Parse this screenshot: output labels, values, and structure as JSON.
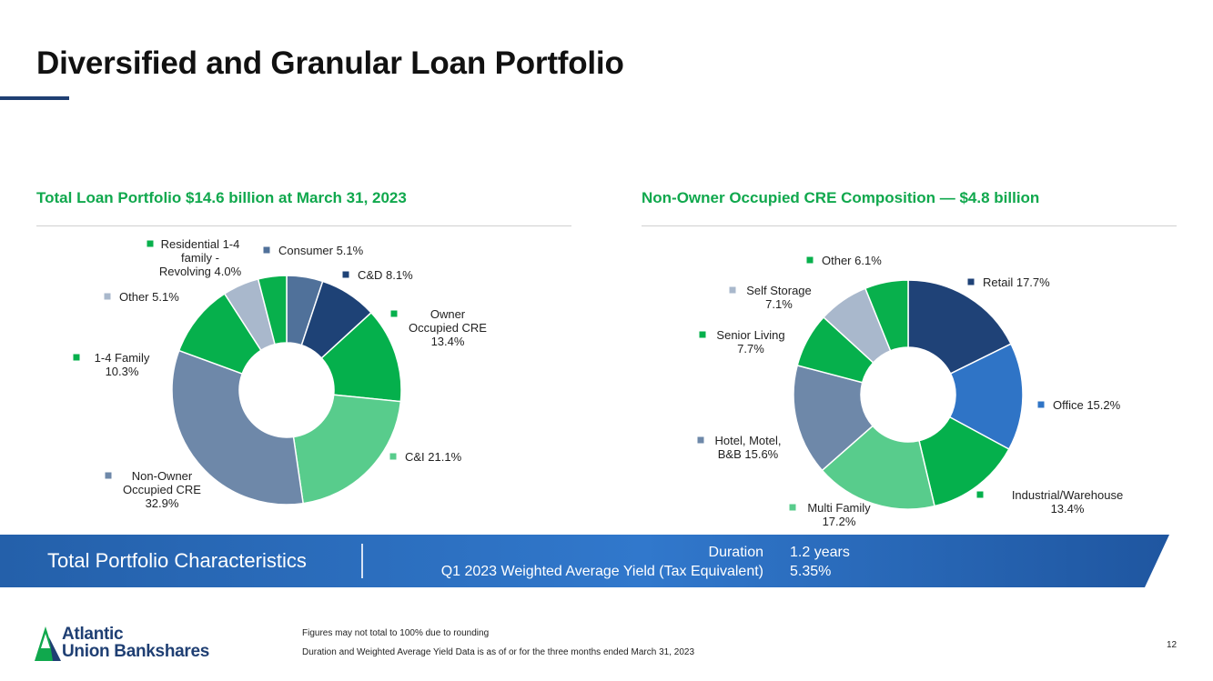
{
  "title": "Diversified and Granular Loan Portfolio",
  "colors": {
    "title_rule": "#1f3f73",
    "green_heading": "#10a84d",
    "banner": "#2e6fbf"
  },
  "chart_data": [
    {
      "type": "pie",
      "title": "Total Loan Portfolio $14.6 billion at March 31, 2023",
      "donut": true,
      "slices": [
        {
          "name": "Consumer",
          "value": 5.1,
          "label_lines": [
            "Consumer 5.1%"
          ],
          "color": "#50719a"
        },
        {
          "name": "C&D",
          "value": 8.1,
          "label_lines": [
            "C&D 8.1%"
          ],
          "color": "#1e4276"
        },
        {
          "name": "Owner Occupied CRE",
          "value": 13.4,
          "label_lines": [
            "Owner",
            "Occupied CRE",
            "13.4%"
          ],
          "color": "#05b04c"
        },
        {
          "name": "C&I",
          "value": 21.1,
          "label_lines": [
            "C&I 21.1%"
          ],
          "color": "#58cc8c"
        },
        {
          "name": "Non-Owner Occupied CRE",
          "value": 32.9,
          "label_lines": [
            "Non-Owner",
            "Occupied CRE",
            "32.9%"
          ],
          "color": "#6e88a9"
        },
        {
          "name": "1-4 Family",
          "value": 10.3,
          "label_lines": [
            "1-4 Family",
            "10.3%"
          ],
          "color": "#06b04c"
        },
        {
          "name": "Other",
          "value": 5.1,
          "label_lines": [
            "Other 5.1%"
          ],
          "color": "#a9b8cc"
        },
        {
          "name": "Residential 1-4 family - Revolving",
          "value": 4.0,
          "label_lines": [
            "Residential 1-4",
            "family -",
            "Revolving 4.0%"
          ],
          "color": "#08b04c"
        }
      ]
    },
    {
      "type": "pie",
      "title": "Non-Owner Occupied CRE Composition — $4.8 billion",
      "donut": true,
      "slices": [
        {
          "name": "Retail",
          "value": 17.7,
          "label_lines": [
            "Retail 17.7%"
          ],
          "color": "#1f4277"
        },
        {
          "name": "Office",
          "value": 15.2,
          "label_lines": [
            "Office 15.2%"
          ],
          "color": "#2f74c6"
        },
        {
          "name": "Industrial/Warehouse",
          "value": 13.4,
          "label_lines": [
            "Industrial/Warehouse",
            "13.4%"
          ],
          "color": "#05b04c"
        },
        {
          "name": "Multi Family",
          "value": 17.2,
          "label_lines": [
            "Multi Family",
            "17.2%"
          ],
          "color": "#58cc8c"
        },
        {
          "name": "Hotel, Motel, B&B",
          "value": 15.6,
          "label_lines": [
            "Hotel, Motel,",
            "B&B 15.6%"
          ],
          "color": "#6e88a9"
        },
        {
          "name": "Senior Living",
          "value": 7.7,
          "label_lines": [
            "Senior Living",
            "7.7%"
          ],
          "color": "#06b04c"
        },
        {
          "name": "Self Storage",
          "value": 7.1,
          "label_lines": [
            "Self Storage",
            "7.1%"
          ],
          "color": "#a9b8cc"
        },
        {
          "name": "Other",
          "value": 6.1,
          "label_lines": [
            "Other  6.1%"
          ],
          "color": "#08b04c"
        }
      ]
    }
  ],
  "banner": {
    "title": "Total Portfolio Characteristics",
    "metrics": [
      {
        "label": "Duration",
        "value": "1.2 years"
      },
      {
        "label": "Q1 2023 Weighted Average Yield (Tax Equivalent)",
        "value": "5.35%"
      }
    ]
  },
  "logo": {
    "line1": "Atlantic",
    "line2": "Union Bankshares"
  },
  "footnotes": [
    "Figures may not total to 100% due to rounding",
    "Duration and Weighted Average Yield Data is as of or for the three months ended March 31, 2023"
  ],
  "page_number": "12"
}
